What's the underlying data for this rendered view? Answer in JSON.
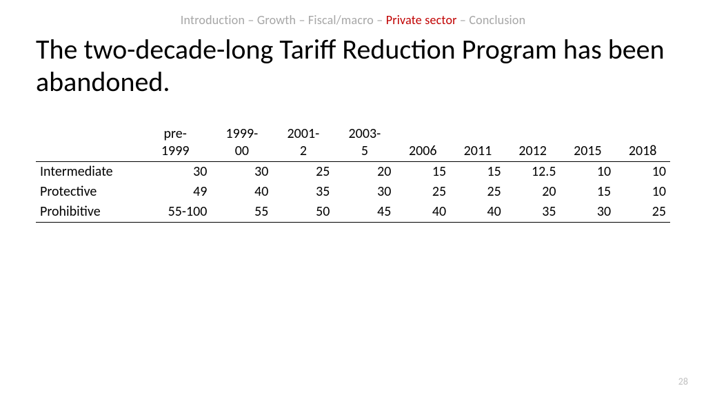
{
  "breadcrumb": {
    "items": [
      "Introduction",
      "Growth",
      "Fiscal/macro",
      "Private sector",
      "Conclusion"
    ],
    "active_index": 3,
    "separator": " – ",
    "inactive_color": "#a6a6a6",
    "active_color": "#c00000"
  },
  "title": "The two-decade-long Tariff Reduction Program has been abandoned.",
  "table": {
    "type": "table",
    "columns": [
      "",
      "pre-1999",
      "1999-00",
      "2001-2",
      "2003-5",
      "2006",
      "2011",
      "2012",
      "2015",
      "2018"
    ],
    "header_twoline": [
      "",
      "pre-\n1999",
      "1999-\n00",
      "2001-\n2",
      "2003-\n5",
      "2006",
      "2011",
      "2012",
      "2015",
      "2018"
    ],
    "rows": [
      {
        "label": "Intermediate",
        "cells": [
          "30",
          "30",
          "25",
          "20",
          "15",
          "15",
          "12.5",
          "10",
          "10"
        ]
      },
      {
        "label": "Protective",
        "cells": [
          "49",
          "40",
          "35",
          "30",
          "25",
          "25",
          "20",
          "15",
          "10"
        ]
      },
      {
        "label": "Prohibitive",
        "cells": [
          "55-100",
          "55",
          "50",
          "45",
          "40",
          "40",
          "35",
          "30",
          "25"
        ]
      }
    ],
    "font_size": 20,
    "border_color": "#000000",
    "text_color": "#000000"
  },
  "page_number": "28"
}
